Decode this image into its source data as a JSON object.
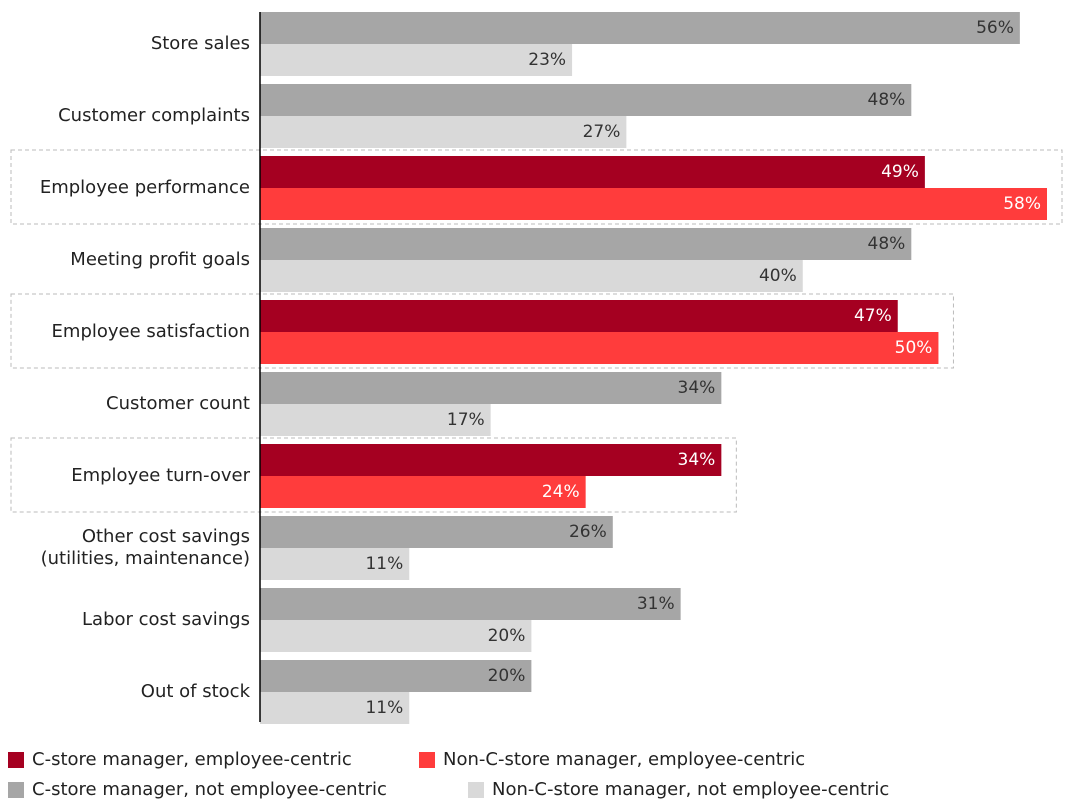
{
  "chart_data": {
    "type": "bar",
    "orientation": "horizontal",
    "categories": [
      "Store sales",
      "Customer complaints",
      "Employee performance",
      "Meeting profit goals",
      "Employee satisfaction",
      "Customer count",
      "Employee turn-over",
      "Other cost savings\n(utilities, maintenance)",
      "Labor cost savings",
      "Out of stock"
    ],
    "series": [
      {
        "name": "C-store manager, employee-centric",
        "color": "#a50021",
        "values": [
          null,
          null,
          49,
          null,
          47,
          null,
          34,
          null,
          null,
          null
        ],
        "value_labels": [
          null,
          null,
          "49%",
          null,
          "47%",
          null,
          "34%",
          null,
          null,
          null
        ]
      },
      {
        "name": "Non-C-store manager, employee-centric",
        "color": "#ff3c3c",
        "values": [
          null,
          null,
          58,
          null,
          50,
          null,
          24,
          null,
          null,
          null
        ],
        "value_labels": [
          null,
          null,
          "58%",
          null,
          "50%",
          null,
          "24%",
          null,
          null,
          null
        ]
      },
      {
        "name": "C-store manager, not employee-centric",
        "color": "#a6a6a6",
        "values": [
          56,
          48,
          null,
          48,
          null,
          34,
          null,
          26,
          31,
          20
        ],
        "value_labels": [
          "56%",
          "48%",
          null,
          "48%",
          null,
          "34%",
          null,
          "26%",
          "31%",
          "20%"
        ]
      },
      {
        "name": "Non-C-store manager, not employee-centric",
        "color": "#d9d9d9",
        "values": [
          23,
          27,
          null,
          40,
          null,
          17,
          null,
          11,
          20,
          11
        ],
        "value_labels": [
          "23%",
          "27%",
          null,
          "40%",
          null,
          "17%",
          null,
          "11%",
          "20%",
          "11%"
        ]
      }
    ]
  }
}
